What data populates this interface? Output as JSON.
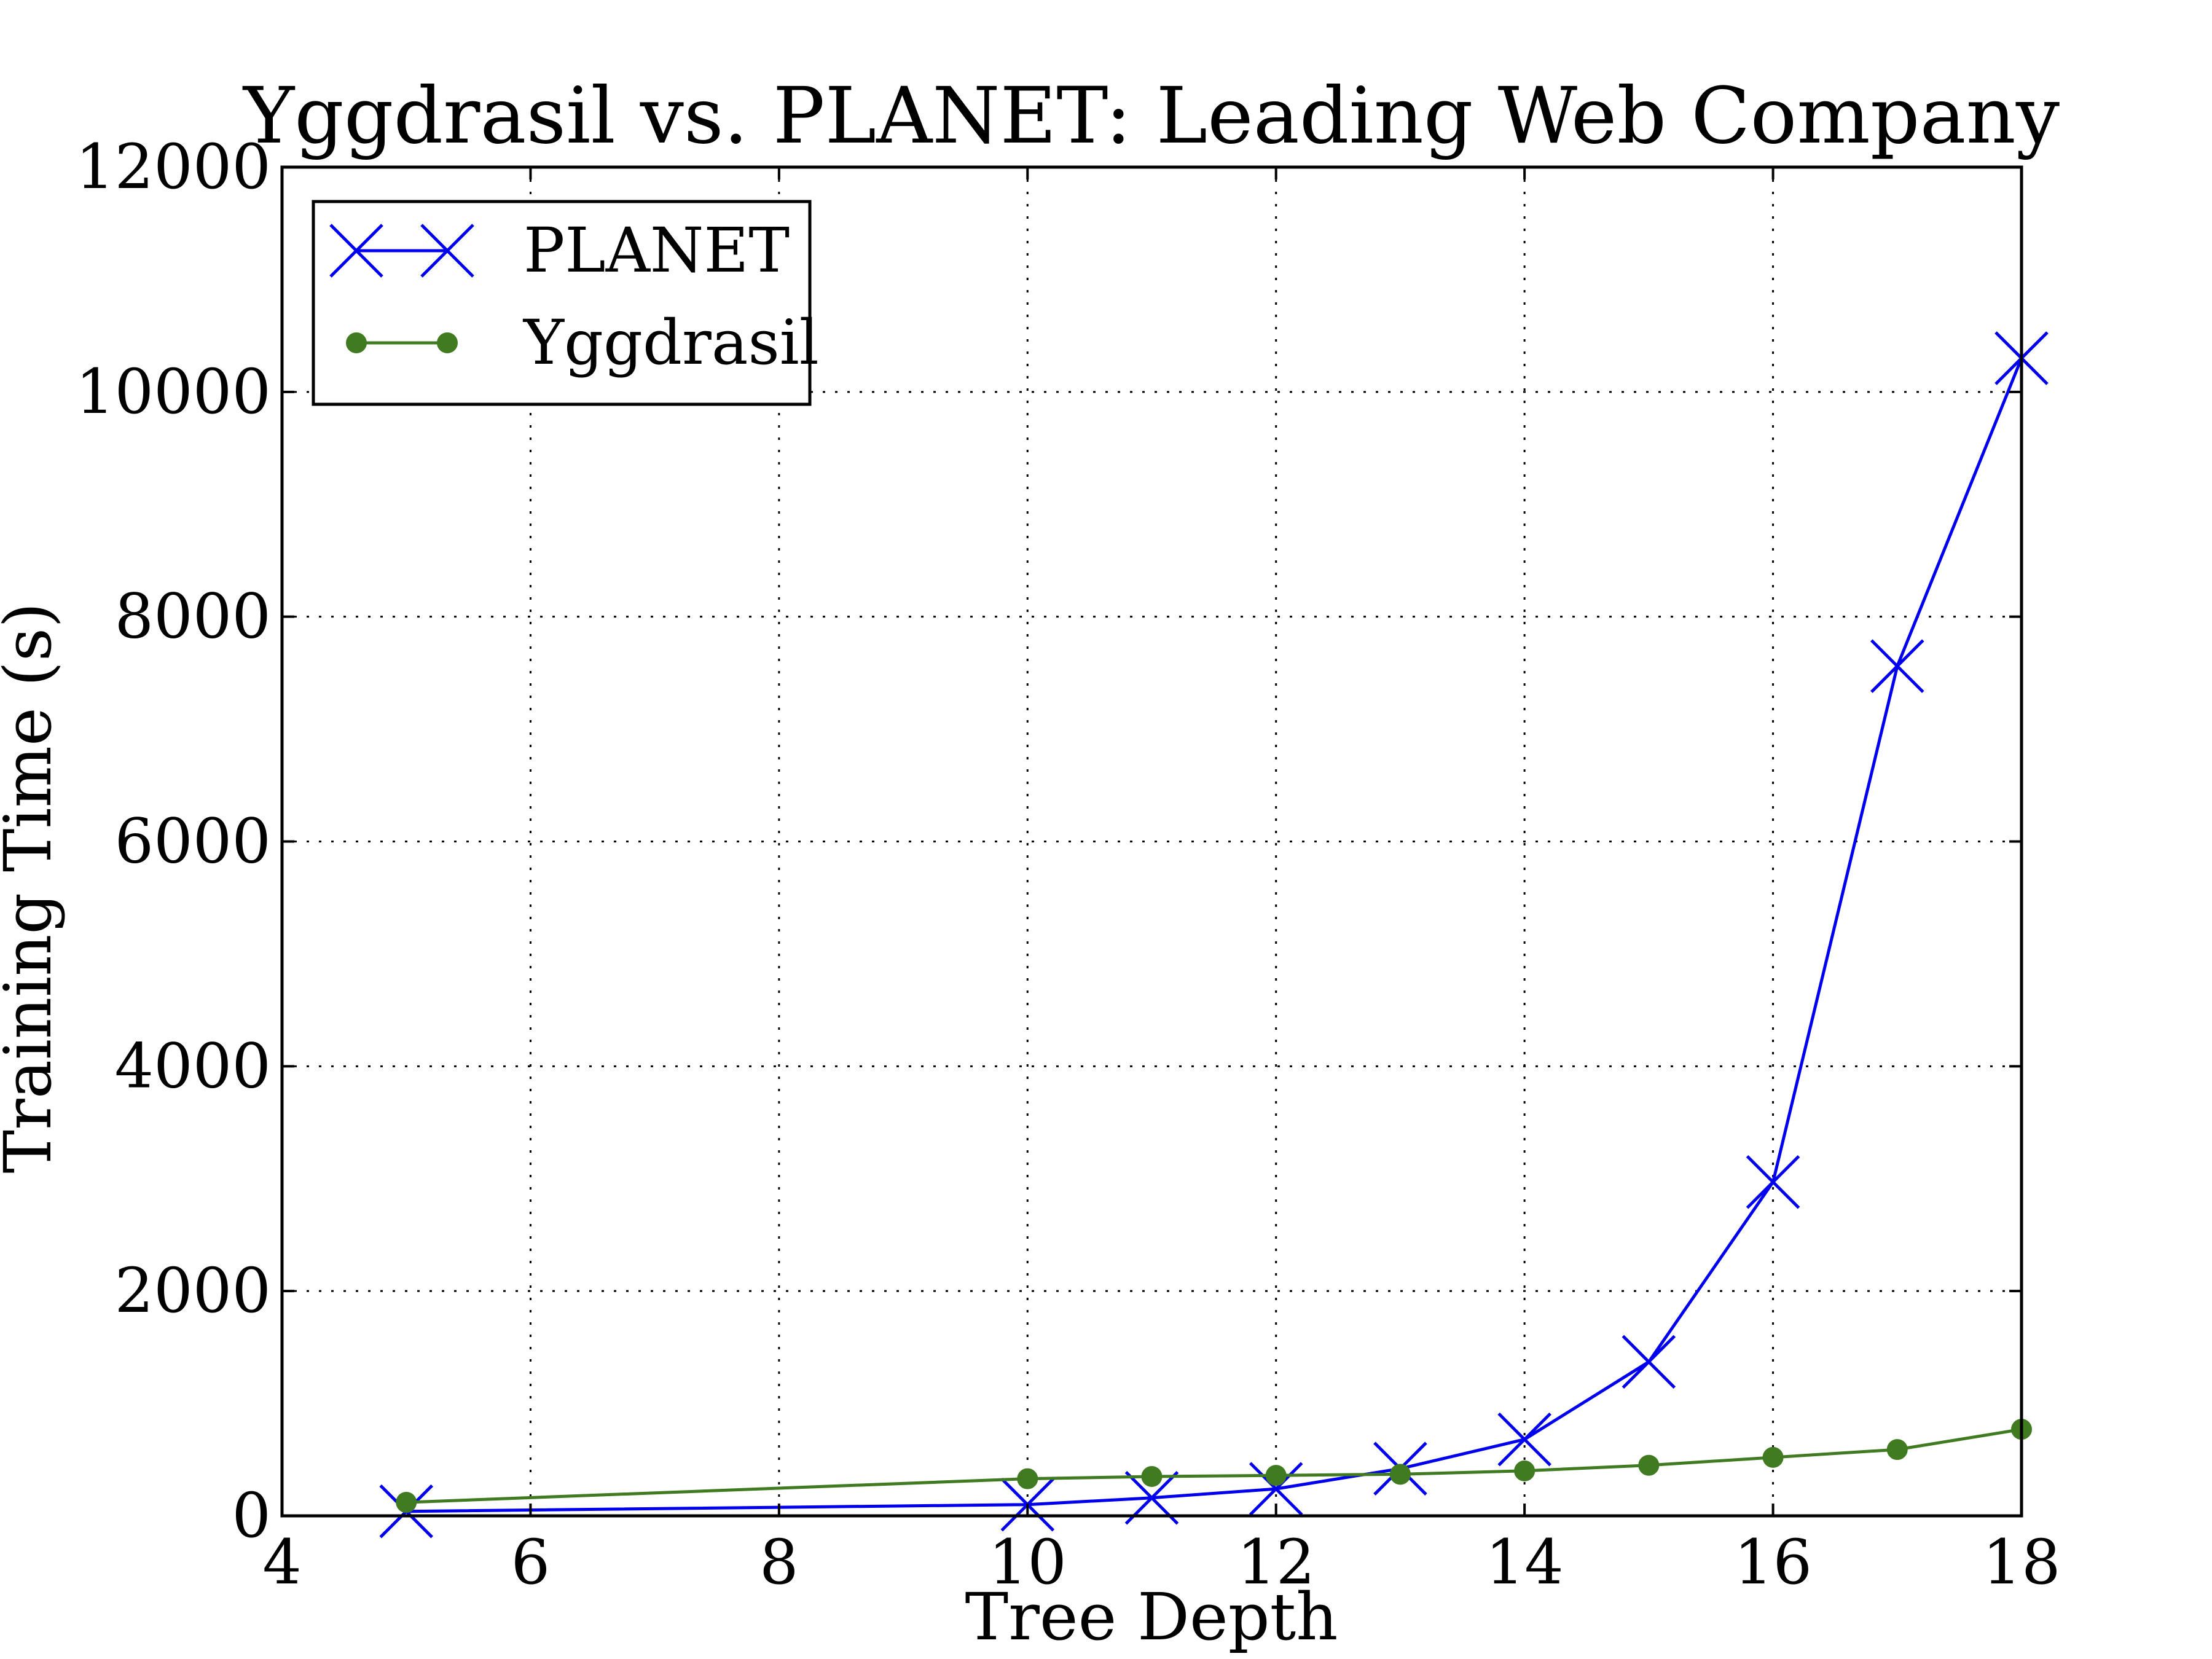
{
  "chart_data": {
    "type": "line",
    "title": "Yggdrasil vs. PLANET: Leading Web Company",
    "xlabel": "Tree Depth",
    "ylabel": "Training Time (s)",
    "xlim": [
      4,
      18
    ],
    "ylim": [
      0,
      12000
    ],
    "xticks": [
      4,
      6,
      8,
      10,
      12,
      14,
      16,
      18
    ],
    "yticks": [
      0,
      2000,
      4000,
      6000,
      8000,
      10000,
      12000
    ],
    "grid": true,
    "legend_position": "top-left",
    "series": [
      {
        "name": "PLANET",
        "color": "#0000ee",
        "marker": "x",
        "x": [
          5,
          10,
          11,
          12,
          13,
          14,
          15,
          16,
          17,
          18
        ],
        "y": [
          40,
          100,
          160,
          240,
          420,
          680,
          1370,
          2970,
          7560,
          10300
        ]
      },
      {
        "name": "Yggdrasil",
        "color": "#417b21",
        "marker": "o",
        "x": [
          5,
          10,
          11,
          12,
          13,
          14,
          15,
          16,
          17,
          18
        ],
        "y": [
          120,
          330,
          350,
          360,
          370,
          400,
          450,
          520,
          590,
          770
        ]
      }
    ]
  }
}
